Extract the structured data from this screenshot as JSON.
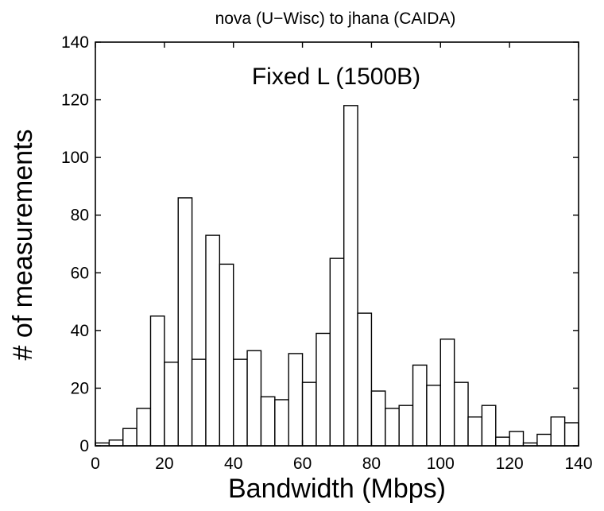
{
  "chart_data": {
    "type": "bar",
    "title": "nova (U−Wisc) to jhana (CAIDA)",
    "annotation": "Fixed L (1500B)",
    "xlabel": "Bandwidth (Mbps)",
    "ylabel": "# of measurements",
    "xlim": [
      0,
      140
    ],
    "ylim": [
      0,
      140
    ],
    "xticks": [
      0,
      20,
      40,
      60,
      80,
      100,
      120,
      140
    ],
    "yticks": [
      0,
      20,
      40,
      60,
      80,
      100,
      120,
      140
    ],
    "bin_width": 4,
    "bins": [
      {
        "x0": 0,
        "x1": 4,
        "value": 1
      },
      {
        "x0": 4,
        "x1": 8,
        "value": 2
      },
      {
        "x0": 8,
        "x1": 12,
        "value": 6
      },
      {
        "x0": 12,
        "x1": 16,
        "value": 13
      },
      {
        "x0": 16,
        "x1": 20,
        "value": 45
      },
      {
        "x0": 20,
        "x1": 24,
        "value": 29
      },
      {
        "x0": 24,
        "x1": 28,
        "value": 86
      },
      {
        "x0": 28,
        "x1": 32,
        "value": 30
      },
      {
        "x0": 32,
        "x1": 36,
        "value": 73
      },
      {
        "x0": 36,
        "x1": 40,
        "value": 63
      },
      {
        "x0": 40,
        "x1": 44,
        "value": 30
      },
      {
        "x0": 44,
        "x1": 48,
        "value": 33
      },
      {
        "x0": 48,
        "x1": 52,
        "value": 17
      },
      {
        "x0": 52,
        "x1": 56,
        "value": 16
      },
      {
        "x0": 56,
        "x1": 60,
        "value": 32
      },
      {
        "x0": 60,
        "x1": 64,
        "value": 22
      },
      {
        "x0": 64,
        "x1": 68,
        "value": 39
      },
      {
        "x0": 68,
        "x1": 72,
        "value": 65
      },
      {
        "x0": 72,
        "x1": 76,
        "value": 118
      },
      {
        "x0": 76,
        "x1": 80,
        "value": 46
      },
      {
        "x0": 80,
        "x1": 84,
        "value": 19
      },
      {
        "x0": 84,
        "x1": 88,
        "value": 13
      },
      {
        "x0": 88,
        "x1": 92,
        "value": 14
      },
      {
        "x0": 92,
        "x1": 96,
        "value": 28
      },
      {
        "x0": 96,
        "x1": 100,
        "value": 21
      },
      {
        "x0": 100,
        "x1": 104,
        "value": 37
      },
      {
        "x0": 104,
        "x1": 108,
        "value": 22
      },
      {
        "x0": 108,
        "x1": 112,
        "value": 10
      },
      {
        "x0": 112,
        "x1": 116,
        "value": 14
      },
      {
        "x0": 116,
        "x1": 120,
        "value": 3
      },
      {
        "x0": 120,
        "x1": 124,
        "value": 5
      },
      {
        "x0": 124,
        "x1": 128,
        "value": 1
      },
      {
        "x0": 128,
        "x1": 132,
        "value": 4
      },
      {
        "x0": 132,
        "x1": 136,
        "value": 10
      },
      {
        "x0": 136,
        "x1": 140,
        "value": 8
      }
    ],
    "grid": false,
    "legend": "none"
  }
}
